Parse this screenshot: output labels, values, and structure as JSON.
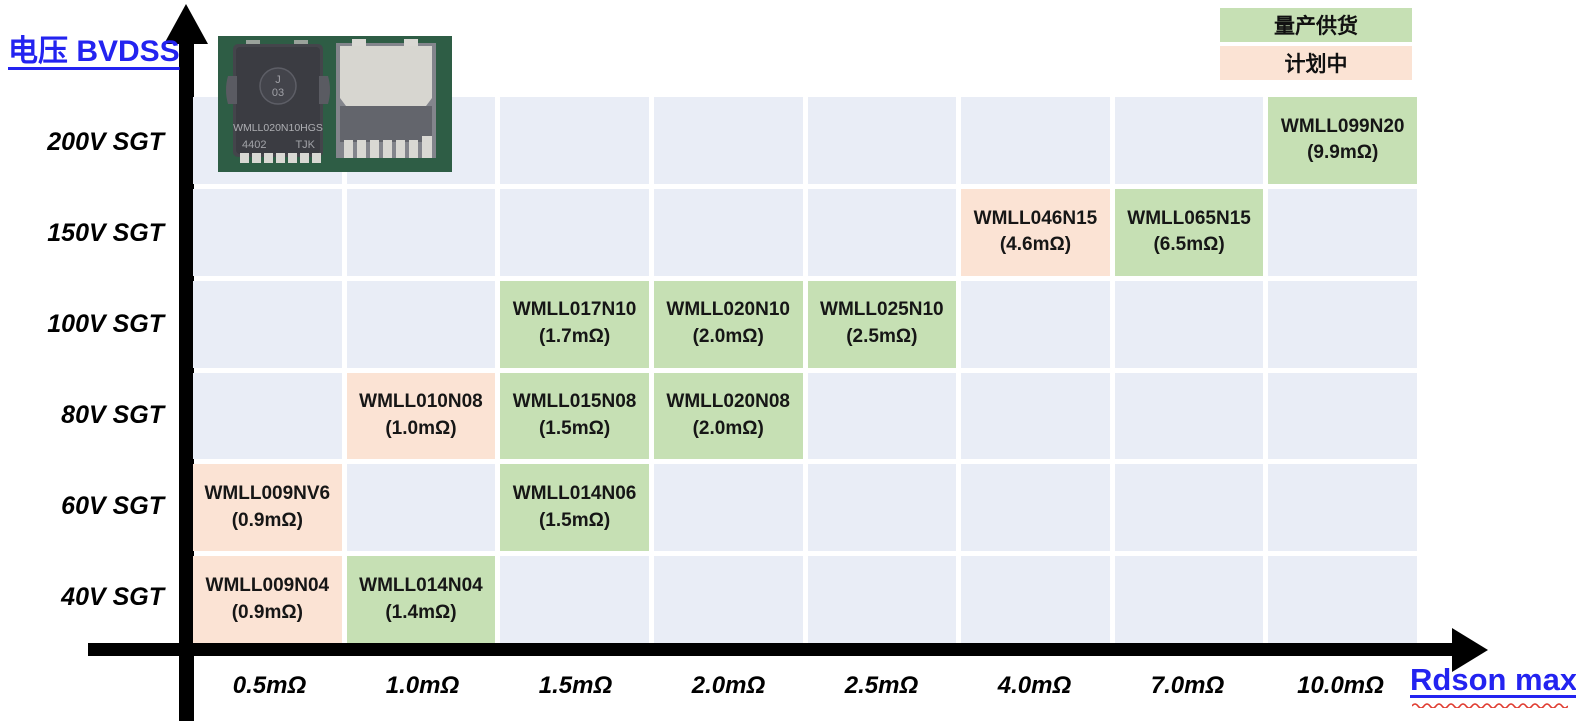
{
  "colors": {
    "production_green": "#c6e0b4",
    "planned_peach": "#fbe3d4",
    "empty_cell": "#e9edf6",
    "axis_black": "#000000",
    "link_blue": "#2323f0"
  },
  "y_axis_title": "电压 BVDSS",
  "x_axis_title": "Rdson max",
  "legend": [
    {
      "label": "量产供货",
      "status": "production",
      "color": "#c6e0b4"
    },
    {
      "label": "计划中",
      "status": "planned",
      "color": "#fbe3d4"
    }
  ],
  "chart_data": {
    "type": "heatmap",
    "title": "",
    "xlabel": "Rdson max",
    "ylabel": "电压 BVDSS",
    "x_categories": [
      "0.5mΩ",
      "1.0mΩ",
      "1.5mΩ",
      "2.0mΩ",
      "2.5mΩ",
      "4.0mΩ",
      "7.0mΩ",
      "10.0mΩ"
    ],
    "y_categories": [
      "200V SGT",
      "150V SGT",
      "100V SGT",
      "80V SGT",
      "60V SGT",
      "40V SGT"
    ],
    "legend_position": "top-right",
    "grid": true,
    "cells": [
      {
        "row": 0,
        "col": 7,
        "name": "WMLL099N20",
        "rdson": "(9.9mΩ)",
        "status": "production"
      },
      {
        "row": 1,
        "col": 5,
        "name": "WMLL046N15",
        "rdson": "(4.6mΩ)",
        "status": "planned"
      },
      {
        "row": 1,
        "col": 6,
        "name": "WMLL065N15",
        "rdson": "(6.5mΩ)",
        "status": "production"
      },
      {
        "row": 2,
        "col": 2,
        "name": "WMLL017N10",
        "rdson": "(1.7mΩ)",
        "status": "production"
      },
      {
        "row": 2,
        "col": 3,
        "name": "WMLL020N10",
        "rdson": "(2.0mΩ)",
        "status": "production"
      },
      {
        "row": 2,
        "col": 4,
        "name": "WMLL025N10",
        "rdson": "(2.5mΩ)",
        "status": "production"
      },
      {
        "row": 3,
        "col": 1,
        "name": "WMLL010N08",
        "rdson": "(1.0mΩ)",
        "status": "planned"
      },
      {
        "row": 3,
        "col": 2,
        "name": "WMLL015N08",
        "rdson": "(1.5mΩ)",
        "status": "production"
      },
      {
        "row": 3,
        "col": 3,
        "name": "WMLL020N08",
        "rdson": "(2.0mΩ)",
        "status": "production"
      },
      {
        "row": 4,
        "col": 0,
        "name": "WMLL009NV6",
        "rdson": "(0.9mΩ)",
        "status": "planned"
      },
      {
        "row": 4,
        "col": 2,
        "name": "WMLL014N06",
        "rdson": "(1.5mΩ)",
        "status": "production"
      },
      {
        "row": 5,
        "col": 0,
        "name": "WMLL009N04",
        "rdson": "(0.9mΩ)",
        "status": "planned"
      },
      {
        "row": 5,
        "col": 1,
        "name": "WMLL014N04",
        "rdson": "(1.4mΩ)",
        "status": "production"
      }
    ]
  },
  "package_photo": {
    "marking_part": "WMLL020N10HGS",
    "marking_lot": "4402",
    "marking_code": "TJK",
    "laser_mark_line1": "J",
    "laser_mark_line2": "03"
  }
}
